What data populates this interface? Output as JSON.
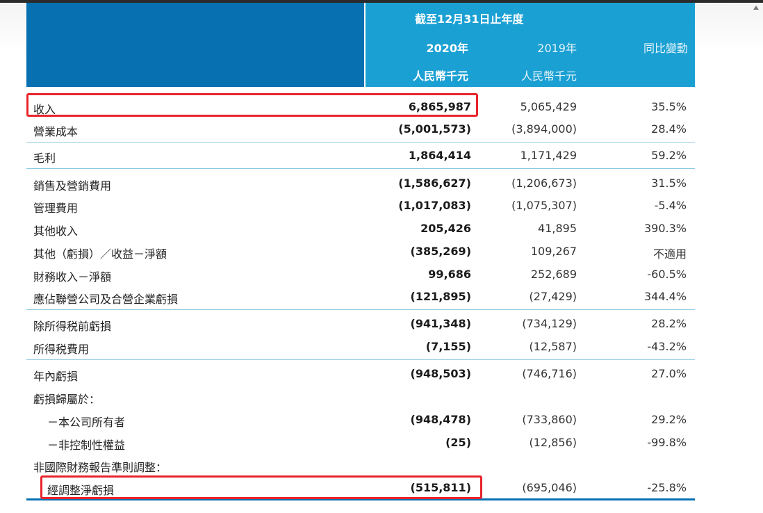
{
  "header": {
    "period": "截至12月31日止年度",
    "col2020": "2020年",
    "col2019": "2019年",
    "colChange": "同比變動",
    "unit2020": "人民幣千元",
    "unit2019": "人民幣千元"
  },
  "rows": [
    {
      "label": "收入",
      "v2020": "6,865,987",
      "v2019": "5,065,429",
      "chg": "35.5%"
    },
    {
      "label": "營業成本",
      "v2020": "(5,001,573)",
      "v2019": "(3,894,000)",
      "chg": "28.4%"
    },
    {
      "label": "毛利",
      "v2020": "1,864,414",
      "v2019": "1,171,429",
      "chg": "59.2%"
    },
    {
      "label": "銷售及營銷費用",
      "v2020": "(1,586,627)",
      "v2019": "(1,206,673)",
      "chg": "31.5%"
    },
    {
      "label": "管理費用",
      "v2020": "(1,017,083)",
      "v2019": "(1,075,307)",
      "chg": "-5.4%"
    },
    {
      "label": "其他收入",
      "v2020": "205,426",
      "v2019": "41,895",
      "chg": "390.3%"
    },
    {
      "label": "其他（虧損）／收益－淨額",
      "v2020": "(385,269)",
      "v2019": "109,267",
      "chg": "不適用"
    },
    {
      "label": "財務收入－淨額",
      "v2020": "99,686",
      "v2019": "252,689",
      "chg": "-60.5%"
    },
    {
      "label": "應佔聯營公司及合營企業虧損",
      "v2020": "(121,895)",
      "v2019": "(27,429)",
      "chg": "344.4%"
    },
    {
      "label": "除所得税前虧損",
      "v2020": "(941,348)",
      "v2019": "(734,129)",
      "chg": "28.2%"
    },
    {
      "label": "所得税費用",
      "v2020": "(7,155)",
      "v2019": "(12,587)",
      "chg": "-43.2%"
    },
    {
      "label": "年內虧損",
      "v2020": "(948,503)",
      "v2019": "(746,716)",
      "chg": "27.0%"
    },
    {
      "label": "虧損歸屬於：",
      "v2020": "",
      "v2019": "",
      "chg": ""
    },
    {
      "label": "－本公司所有者",
      "v2020": "(948,478)",
      "v2019": "(733,860)",
      "chg": "29.2%"
    },
    {
      "label": "－非控制性權益",
      "v2020": "(25)",
      "v2019": "(12,856)",
      "chg": "-99.8%"
    },
    {
      "label": "非國際財務報告準則調整：",
      "v2020": "",
      "v2019": "",
      "chg": ""
    },
    {
      "label": "經調整淨虧損",
      "v2020": "(515,811)",
      "v2019": "(695,046)",
      "chg": "-25.8%"
    }
  ],
  "colors": {
    "headerDark": "#0670b1",
    "headerLight": "#1ba0d3",
    "highlight": "#e8242a",
    "rule": "#8dc9e3"
  }
}
